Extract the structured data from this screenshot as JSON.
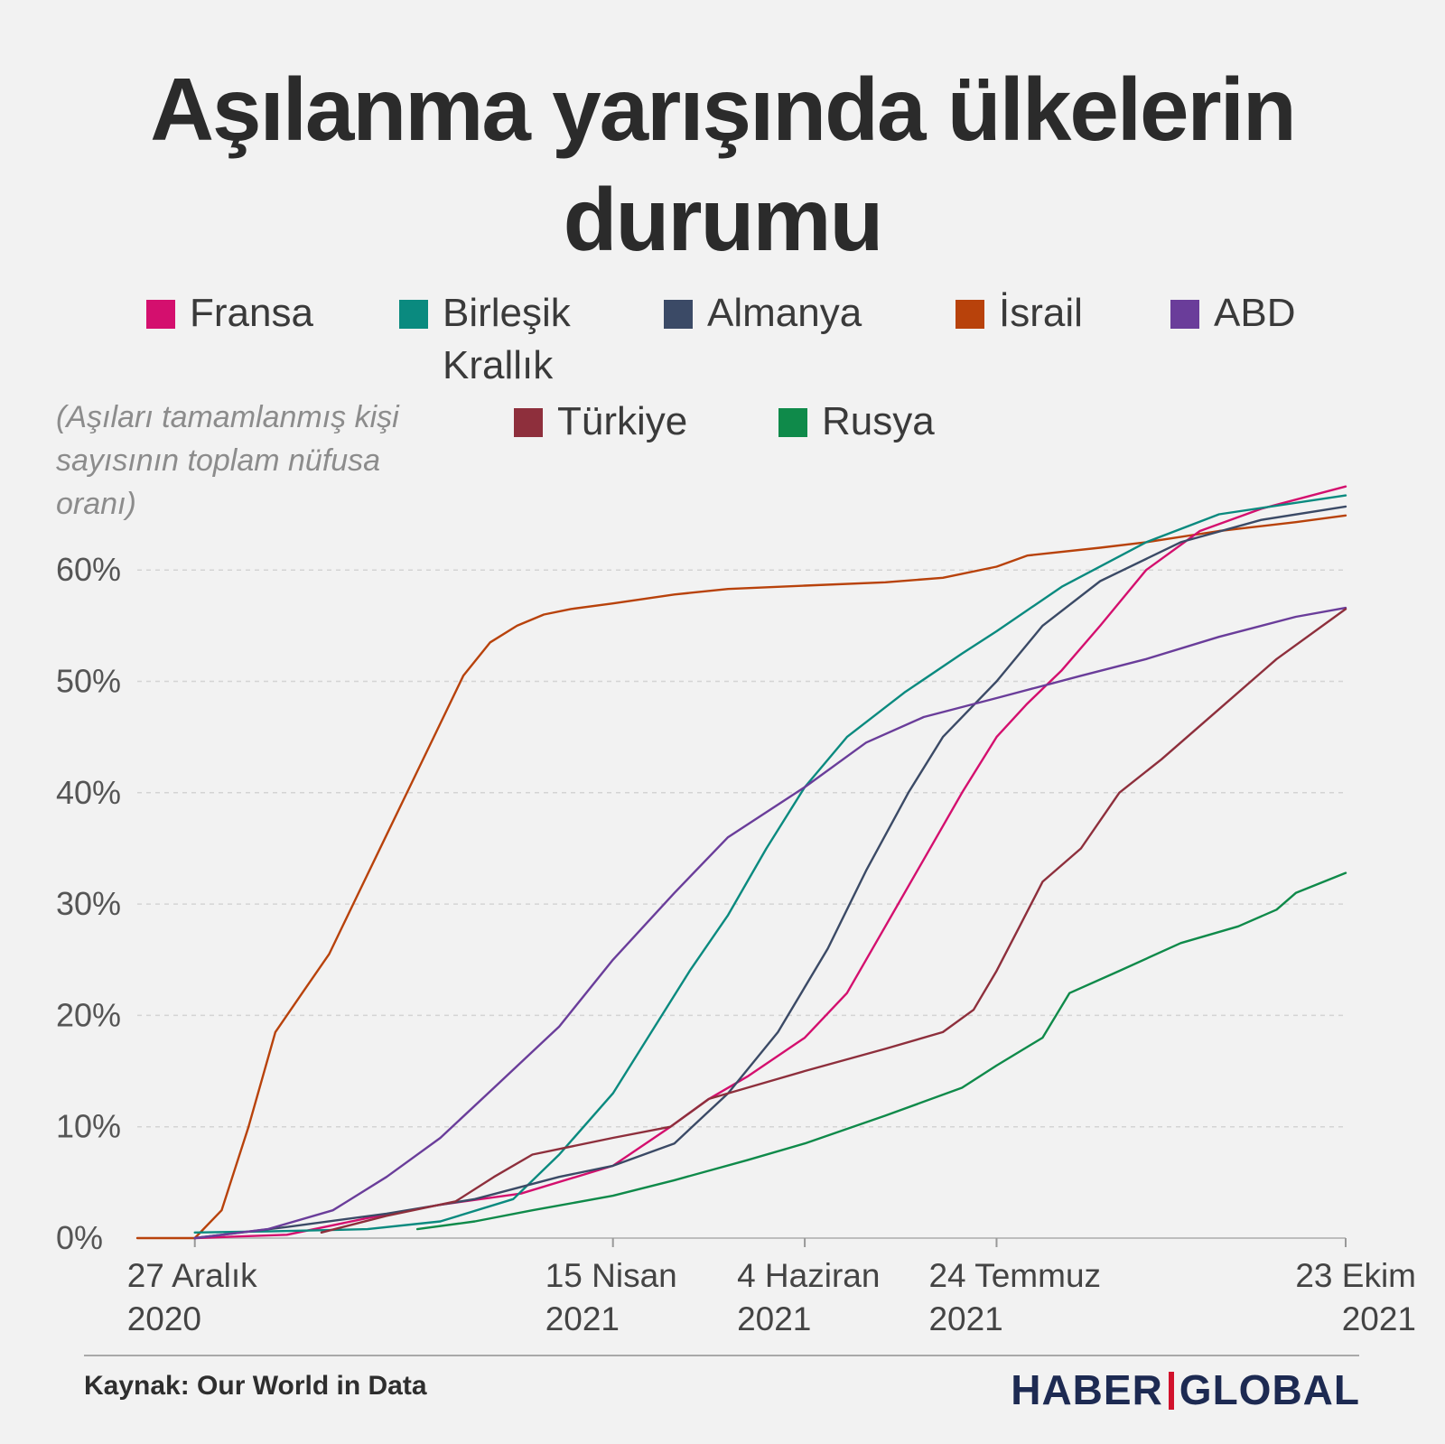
{
  "title_line1": "Aşılanma yarışında ülkelerin",
  "title_line2": "durumu",
  "note": "(Aşıları tamamlanmış kişi sayısının toplam nüfusa oranı)",
  "source": "Kaynak: Our World in Data",
  "brand_left": "HABER",
  "brand_right": "GLOBAL",
  "legend": [
    {
      "name": "Fransa",
      "color": "#d40f6e"
    },
    {
      "name": "Birleşik Krallık",
      "color": "#0a8a7f"
    },
    {
      "name": "Almanya",
      "color": "#3b4a66"
    },
    {
      "name": "İsrail",
      "color": "#b8420b"
    },
    {
      "name": "ABD",
      "color": "#6a3d9a"
    },
    {
      "name": "Türkiye",
      "color": "#8e2f3c"
    },
    {
      "name": "Rusya",
      "color": "#0f8a4a"
    }
  ],
  "chart_data": {
    "type": "line",
    "x_axis_type": "date",
    "x_start": "2020-12-12",
    "x_end": "2021-10-23",
    "y_lim": [
      0,
      70
    ],
    "y_unit": "%",
    "y_ticks": [
      {
        "value": 0,
        "label": "0%"
      },
      {
        "value": 10,
        "label": "10%"
      },
      {
        "value": 20,
        "label": "20%"
      },
      {
        "value": 30,
        "label": "30%"
      },
      {
        "value": 40,
        "label": "40%"
      },
      {
        "value": 50,
        "label": "50%"
      },
      {
        "value": 60,
        "label": "60%"
      }
    ],
    "x_ticks": [
      {
        "date": "2020-12-27",
        "line1": "27 Aralık",
        "line2": "2020"
      },
      {
        "date": "2021-04-15",
        "line1": "15 Nisan",
        "line2": "2021"
      },
      {
        "date": "2021-06-04",
        "line1": "4 Haziran",
        "line2": "2021"
      },
      {
        "date": "2021-07-24",
        "line1": "24 Temmuz",
        "line2": "2021"
      },
      {
        "date": "2021-10-23",
        "line1": "23 Ekim",
        "line2": "2021"
      }
    ],
    "grid": true,
    "series": [
      {
        "name": "İsrail",
        "color": "#b8420b",
        "points": [
          [
            "2020-12-12",
            0
          ],
          [
            "2020-12-27",
            0
          ],
          [
            "2021-01-03",
            2.5
          ],
          [
            "2021-01-10",
            10
          ],
          [
            "2021-01-17",
            18.5
          ],
          [
            "2021-01-24",
            22
          ],
          [
            "2021-01-31",
            25.5
          ],
          [
            "2021-02-07",
            30.5
          ],
          [
            "2021-02-14",
            35.5
          ],
          [
            "2021-02-21",
            40.5
          ],
          [
            "2021-02-28",
            45.5
          ],
          [
            "2021-03-07",
            50.5
          ],
          [
            "2021-03-14",
            53.5
          ],
          [
            "2021-03-21",
            55
          ],
          [
            "2021-03-28",
            56
          ],
          [
            "2021-04-04",
            56.5
          ],
          [
            "2021-04-15",
            57
          ],
          [
            "2021-05-01",
            57.8
          ],
          [
            "2021-05-15",
            58.3
          ],
          [
            "2021-06-04",
            58.6
          ],
          [
            "2021-06-25",
            58.9
          ],
          [
            "2021-07-10",
            59.3
          ],
          [
            "2021-07-24",
            60.3
          ],
          [
            "2021-08-01",
            61.3
          ],
          [
            "2021-08-20",
            62
          ],
          [
            "2021-09-01",
            62.5
          ],
          [
            "2021-09-20",
            63.5
          ],
          [
            "2021-10-10",
            64.3
          ],
          [
            "2021-10-23",
            64.9
          ]
        ]
      },
      {
        "name": "Fransa",
        "color": "#d40f6e",
        "points": [
          [
            "2020-12-27",
            0
          ],
          [
            "2021-01-20",
            0.3
          ],
          [
            "2021-02-10",
            1.8
          ],
          [
            "2021-03-01",
            3
          ],
          [
            "2021-03-22",
            4
          ],
          [
            "2021-04-15",
            6.5
          ],
          [
            "2021-04-30",
            10
          ],
          [
            "2021-05-10",
            12.5
          ],
          [
            "2021-05-20",
            14.5
          ],
          [
            "2021-06-04",
            18
          ],
          [
            "2021-06-15",
            22
          ],
          [
            "2021-06-25",
            28
          ],
          [
            "2021-07-05",
            34
          ],
          [
            "2021-07-15",
            40
          ],
          [
            "2021-07-24",
            45
          ],
          [
            "2021-08-01",
            48
          ],
          [
            "2021-08-10",
            51
          ],
          [
            "2021-08-20",
            55
          ],
          [
            "2021-09-01",
            60
          ],
          [
            "2021-09-15",
            63.5
          ],
          [
            "2021-10-01",
            65.5
          ],
          [
            "2021-10-23",
            67.5
          ]
        ]
      },
      {
        "name": "Birleşik Krallık",
        "color": "#0a8a7f",
        "points": [
          [
            "2020-12-27",
            0.5
          ],
          [
            "2021-01-15",
            0.6
          ],
          [
            "2021-02-10",
            0.8
          ],
          [
            "2021-03-01",
            1.5
          ],
          [
            "2021-03-20",
            3.5
          ],
          [
            "2021-04-01",
            7.5
          ],
          [
            "2021-04-15",
            13
          ],
          [
            "2021-04-25",
            18.5
          ],
          [
            "2021-05-05",
            24
          ],
          [
            "2021-05-15",
            29
          ],
          [
            "2021-05-25",
            35
          ],
          [
            "2021-06-04",
            40.5
          ],
          [
            "2021-06-15",
            45
          ],
          [
            "2021-06-30",
            49
          ],
          [
            "2021-07-15",
            52.5
          ],
          [
            "2021-07-24",
            54.5
          ],
          [
            "2021-08-10",
            58.5
          ],
          [
            "2021-09-01",
            62.5
          ],
          [
            "2021-09-20",
            65
          ],
          [
            "2021-10-23",
            66.7
          ]
        ]
      },
      {
        "name": "Almanya",
        "color": "#3b4a66",
        "points": [
          [
            "2020-12-27",
            0
          ],
          [
            "2021-01-20",
            1
          ],
          [
            "2021-02-15",
            2.2
          ],
          [
            "2021-03-10",
            3.5
          ],
          [
            "2021-04-01",
            5.5
          ],
          [
            "2021-04-15",
            6.5
          ],
          [
            "2021-05-01",
            8.5
          ],
          [
            "2021-05-15",
            13
          ],
          [
            "2021-05-28",
            18.5
          ],
          [
            "2021-06-10",
            26
          ],
          [
            "2021-06-20",
            33
          ],
          [
            "2021-07-01",
            40
          ],
          [
            "2021-07-10",
            45
          ],
          [
            "2021-07-24",
            50
          ],
          [
            "2021-08-05",
            55
          ],
          [
            "2021-08-20",
            59
          ],
          [
            "2021-09-10",
            62.5
          ],
          [
            "2021-10-01",
            64.5
          ],
          [
            "2021-10-23",
            65.7
          ]
        ]
      },
      {
        "name": "ABD",
        "color": "#6a3d9a",
        "points": [
          [
            "2020-12-27",
            0
          ],
          [
            "2021-01-15",
            0.8
          ],
          [
            "2021-02-01",
            2.5
          ],
          [
            "2021-02-15",
            5.5
          ],
          [
            "2021-03-01",
            9
          ],
          [
            "2021-03-15",
            13.5
          ],
          [
            "2021-04-01",
            19
          ],
          [
            "2021-04-15",
            25
          ],
          [
            "2021-05-01",
            31
          ],
          [
            "2021-05-15",
            36
          ],
          [
            "2021-06-04",
            40.5
          ],
          [
            "2021-06-20",
            44.5
          ],
          [
            "2021-07-05",
            46.8
          ],
          [
            "2021-07-24",
            48.5
          ],
          [
            "2021-08-15",
            50.5
          ],
          [
            "2021-09-01",
            52
          ],
          [
            "2021-09-20",
            54
          ],
          [
            "2021-10-10",
            55.8
          ],
          [
            "2021-10-23",
            56.6
          ]
        ]
      },
      {
        "name": "Türkiye",
        "color": "#8e2f3c",
        "points": [
          [
            "2021-01-29",
            0.5
          ],
          [
            "2021-02-15",
            2
          ],
          [
            "2021-03-05",
            3.3
          ],
          [
            "2021-03-15",
            5.5
          ],
          [
            "2021-03-25",
            7.5
          ],
          [
            "2021-04-15",
            9
          ],
          [
            "2021-04-30",
            10
          ],
          [
            "2021-05-10",
            12.5
          ],
          [
            "2021-05-25",
            14
          ],
          [
            "2021-06-04",
            15
          ],
          [
            "2021-06-25",
            17
          ],
          [
            "2021-07-10",
            18.5
          ],
          [
            "2021-07-18",
            20.5
          ],
          [
            "2021-07-24",
            24
          ],
          [
            "2021-07-30",
            28
          ],
          [
            "2021-08-05",
            32
          ],
          [
            "2021-08-15",
            35
          ],
          [
            "2021-08-25",
            40
          ],
          [
            "2021-09-05",
            43
          ],
          [
            "2021-09-20",
            47.5
          ],
          [
            "2021-10-05",
            52
          ],
          [
            "2021-10-23",
            56.5
          ]
        ]
      },
      {
        "name": "Rusya",
        "color": "#0f8a4a",
        "points": [
          [
            "2021-02-23",
            0.8
          ],
          [
            "2021-03-10",
            1.5
          ],
          [
            "2021-03-25",
            2.5
          ],
          [
            "2021-04-15",
            3.8
          ],
          [
            "2021-05-01",
            5.2
          ],
          [
            "2021-05-20",
            7
          ],
          [
            "2021-06-04",
            8.5
          ],
          [
            "2021-06-25",
            11
          ],
          [
            "2021-07-15",
            13.5
          ],
          [
            "2021-07-24",
            15.5
          ],
          [
            "2021-08-05",
            18
          ],
          [
            "2021-08-12",
            22
          ],
          [
            "2021-08-25",
            24
          ],
          [
            "2021-09-10",
            26.5
          ],
          [
            "2021-09-25",
            28
          ],
          [
            "2021-10-05",
            29.5
          ],
          [
            "2021-10-10",
            31
          ],
          [
            "2021-10-23",
            32.8
          ]
        ]
      }
    ]
  }
}
